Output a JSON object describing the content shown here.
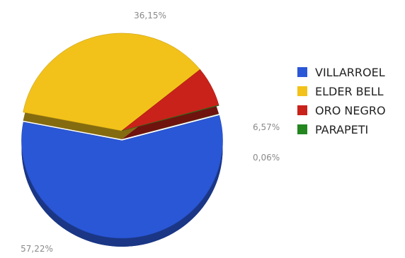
{
  "chart_data": {
    "type": "pie",
    "title": "",
    "legend_placement": "right",
    "three_d": true,
    "exploded_slice": "VILLARROEL",
    "slices": [
      {
        "name": "VILLARROEL",
        "value": 57.22,
        "label": "57,22%",
        "color": "#2a57d6"
      },
      {
        "name": "ELDER BELL",
        "value": 36.15,
        "label": "36,15%",
        "color": "#f2c21b"
      },
      {
        "name": "ORO NEGRO",
        "value": 6.57,
        "label": "6,57%",
        "color": "#c9221a"
      },
      {
        "name": "PARAPETI",
        "value": 0.06,
        "label": "0,06%",
        "color": "#23861f"
      }
    ]
  }
}
